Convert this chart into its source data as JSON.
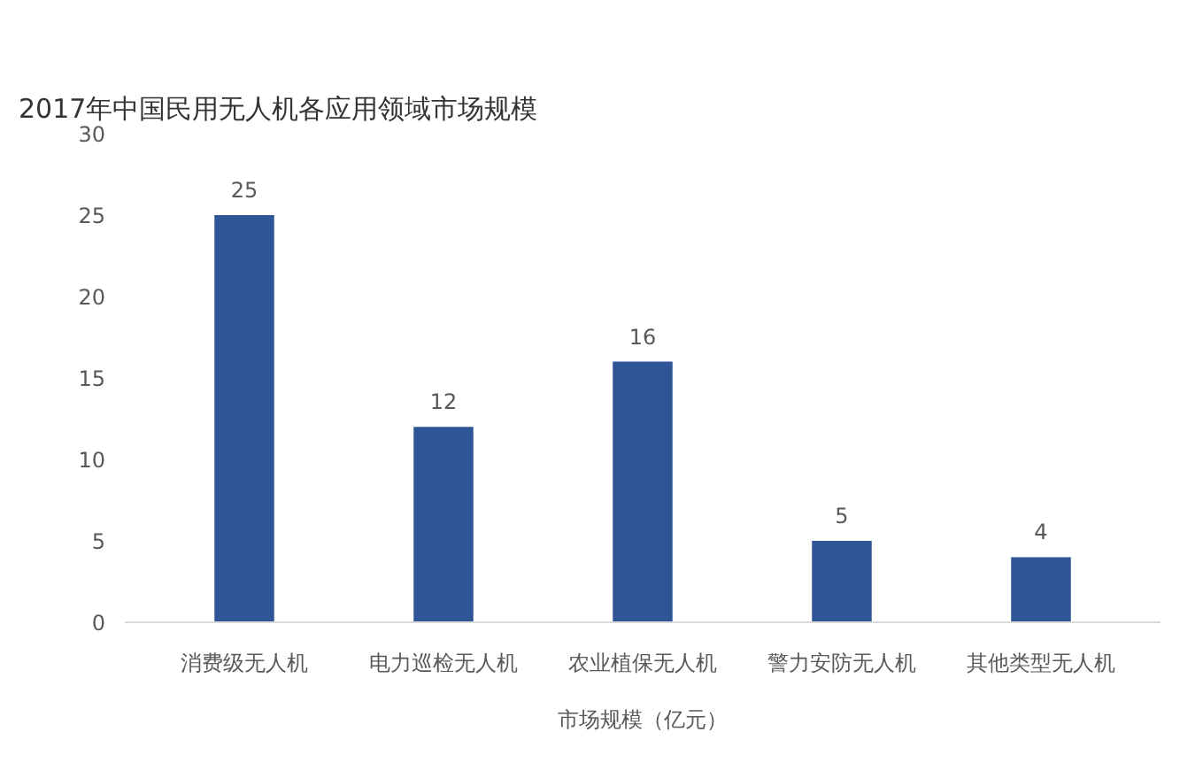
{
  "chart_data": {
    "type": "bar",
    "title": "2017年中国民用无人机各应用领域市场规模",
    "xlabel": "市场规模（亿元）",
    "categories": [
      "消费级无人机",
      "电力巡检无人机",
      "农业植保无人机",
      "警力安防无人机",
      "其他类型无人机"
    ],
    "values": [
      25,
      12,
      16,
      5,
      4
    ],
    "color": "#2f5597",
    "ylim": [
      0,
      30
    ],
    "yticks": [
      0,
      5,
      10,
      15,
      20,
      25,
      30
    ],
    "grid": false,
    "data_labels": true
  }
}
